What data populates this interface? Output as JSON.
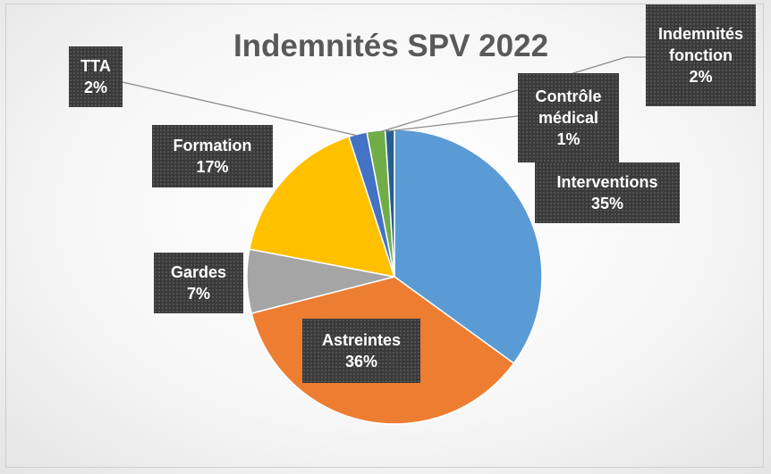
{
  "chart_data": {
    "type": "pie",
    "title": "Indemnités SPV 2022",
    "categories": [
      "Interventions",
      "Astreintes",
      "Gardes",
      "Formation",
      "TTA",
      "Indemnités fonction",
      "Contrôle médical"
    ],
    "values": [
      35,
      36,
      7,
      17,
      2,
      2,
      1
    ],
    "value_labels": [
      "35%",
      "36%",
      "7%",
      "17%",
      "2%",
      "2%",
      "1%"
    ],
    "colors": [
      "#5b9bd5",
      "#ed7d31",
      "#a5a5a5",
      "#ffc000",
      "#4472c4",
      "#70ad47",
      "#255e91"
    ]
  }
}
